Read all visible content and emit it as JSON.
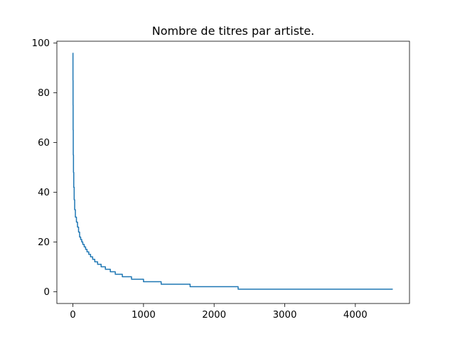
{
  "chart_data": {
    "type": "line",
    "title": "Nombre de titres par artiste.",
    "xlabel": "",
    "ylabel": "",
    "xlim": [
      -227,
      4767
    ],
    "ylim": [
      -4.75,
      100.75
    ],
    "grid": false,
    "legend": null,
    "xticks": [
      0,
      1000,
      2000,
      3000,
      4000
    ],
    "yticks": [
      0,
      20,
      40,
      60,
      80,
      100
    ],
    "series": [
      {
        "name": "titres par artiste",
        "color": "#1f77b4",
        "x": [
          0,
          1,
          2,
          3,
          5,
          8,
          12,
          18,
          25,
          35,
          50,
          65,
          80,
          95,
          110,
          125,
          140,
          160,
          180,
          200,
          225,
          250,
          280,
          310,
          350,
          400,
          460,
          530,
          600,
          700,
          830,
          1000,
          1250,
          1660,
          2340,
          4530
        ],
        "y": [
          96,
          85,
          75,
          65,
          55,
          48,
          42,
          37,
          33,
          30,
          28,
          26,
          24,
          22,
          21,
          20,
          19,
          18,
          17,
          16,
          15,
          14,
          13,
          12,
          11,
          10,
          9,
          8,
          7,
          6,
          5,
          4,
          3,
          2,
          1,
          1
        ]
      }
    ]
  }
}
